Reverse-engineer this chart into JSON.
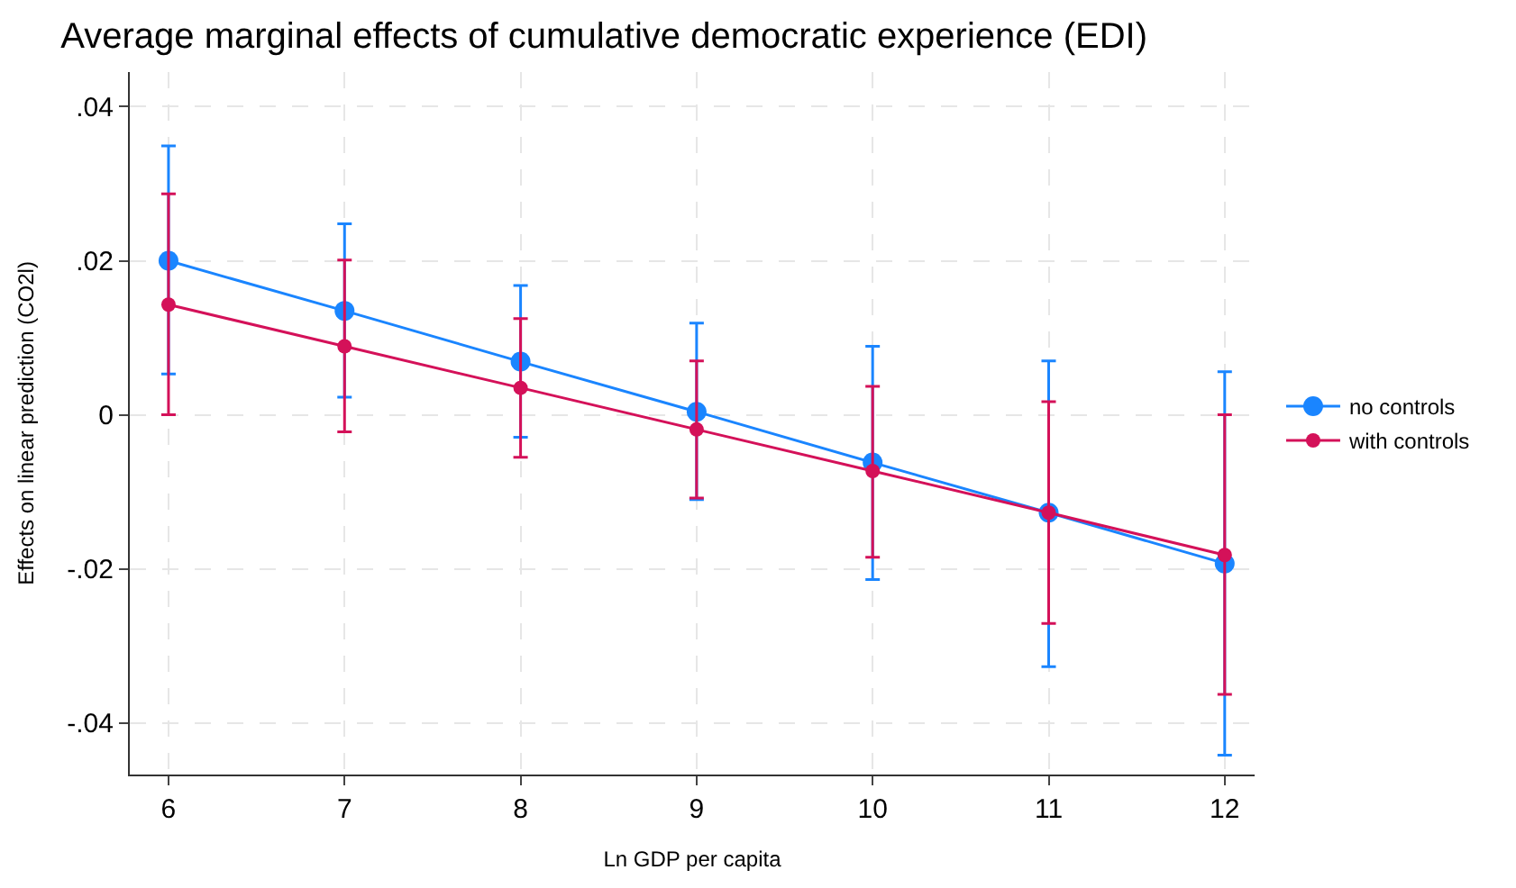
{
  "chart_data": {
    "type": "line",
    "title": "Average marginal effects of cumulative democratic experience (EDI)",
    "xlabel": "Ln GDP per capita",
    "ylabel": "Effects on linear prediction (CO2l)",
    "x": [
      6,
      7,
      8,
      9,
      10,
      11,
      12
    ],
    "series": [
      {
        "name": "no controls",
        "color": "#1a85ff",
        "values": [
          0.02,
          0.0135,
          0.0069,
          0.0004,
          -0.0062,
          -0.0127,
          -0.0193
        ],
        "errors": [
          [
            0.0053,
            0.0349
          ],
          [
            0.0023,
            0.0248
          ],
          [
            -0.0029,
            0.0168
          ],
          [
            -0.011,
            0.0119
          ],
          [
            -0.0214,
            0.0089
          ],
          [
            -0.0327,
            0.007
          ],
          [
            -0.0442,
            0.0056
          ]
        ]
      },
      {
        "name": "with controls",
        "color": "#d41159",
        "values": [
          0.0143,
          0.0089,
          0.0035,
          -0.0019,
          -0.0073,
          -0.0127,
          -0.0182
        ],
        "errors": [
          [
            0.0,
            0.0287
          ],
          [
            -0.0022,
            0.0201
          ],
          [
            -0.0055,
            0.0125
          ],
          [
            -0.0108,
            0.007
          ],
          [
            -0.0185,
            0.0037
          ],
          [
            -0.0271,
            0.0017
          ],
          [
            -0.0363,
            0.0
          ]
        ]
      }
    ],
    "xlim": [
      5.78,
      12.17
    ],
    "xticks": [
      6,
      7,
      8,
      9,
      10,
      11,
      12
    ],
    "ylim": [
      -0.0467,
      0.0445
    ],
    "yticks": [
      {
        "value": -0.04,
        "label": "-.04"
      },
      {
        "value": -0.02,
        "label": "-.02"
      },
      {
        "value": 0,
        "label": "0"
      },
      {
        "value": 0.02,
        "label": ".02"
      },
      {
        "value": 0.04,
        "label": ".04"
      }
    ],
    "grid": true,
    "legend": "right",
    "marker": "circle",
    "line_style": "solid"
  }
}
